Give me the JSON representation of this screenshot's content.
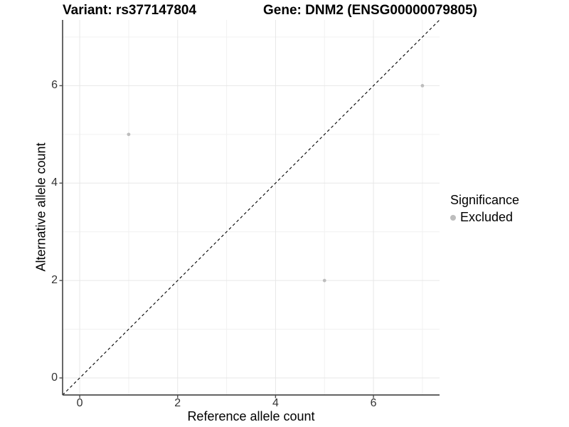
{
  "chart_data": {
    "type": "scatter",
    "title_left": "Variant: rs377147804",
    "title_right": "Gene: DNM2 (ENSG00000079805)",
    "xlabel": "Reference allele count",
    "ylabel": "Alternative allele count",
    "xlim": [
      -0.35,
      7.35
    ],
    "ylim": [
      -0.35,
      7.35
    ],
    "x_ticks": [
      0,
      2,
      4,
      6
    ],
    "y_ticks": [
      0,
      2,
      4,
      6
    ],
    "x_minor_gridlines": [
      1,
      3,
      5,
      7
    ],
    "y_minor_gridlines": [
      1,
      3,
      5,
      7
    ],
    "grid": true,
    "identity_line": {
      "style": "dashed",
      "x1": -0.35,
      "y1": -0.35,
      "x2": 7.35,
      "y2": 7.35,
      "color": "#000000"
    },
    "series": [
      {
        "name": "Excluded",
        "color": "#BDBDBD",
        "points": [
          [
            1,
            5
          ],
          [
            5,
            2
          ],
          [
            7,
            6
          ]
        ]
      }
    ],
    "legend": {
      "title": "Significance",
      "position": "right",
      "items": [
        {
          "label": "Excluded",
          "color": "#BDBDBD"
        }
      ]
    },
    "colors": {
      "background": "#FFFFFF",
      "major_grid": "#E7E7E7",
      "minor_grid": "#F1F1F1",
      "axis_line": "#4D4D4D",
      "tick_label": "#333333",
      "point": "#BDBDBD"
    }
  }
}
